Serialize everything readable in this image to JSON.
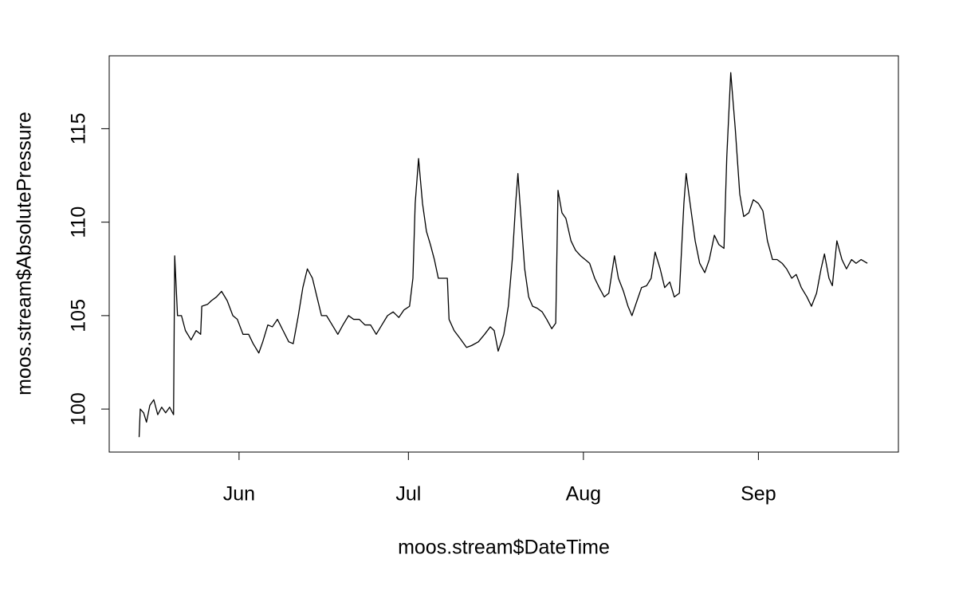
{
  "chart_data": {
    "type": "line",
    "xlabel": "moos.stream$DateTime",
    "ylabel": "moos.stream$AbsolutePressure",
    "xlim": [
      8.0,
      147.8
    ],
    "xticks": [
      {
        "value": 31,
        "label": "Jun"
      },
      {
        "value": 61,
        "label": "Jul"
      },
      {
        "value": 92,
        "label": "Aug"
      },
      {
        "value": 123,
        "label": "Sep"
      }
    ],
    "ylim": [
      97.7,
      118.9
    ],
    "yticks": [
      100,
      105,
      110,
      115
    ],
    "color": "#000000",
    "x": [
      13.3,
      13.5,
      14.1,
      14.6,
      15.2,
      15.9,
      16.6,
      17.3,
      18.0,
      18.7,
      19.4,
      19.6,
      20.1,
      20.8,
      21.5,
      22.5,
      23.4,
      24.2,
      24.4,
      25.4,
      26.1,
      27.0,
      27.9,
      28.9,
      29.9,
      30.7,
      31.7,
      32.7,
      33.5,
      34.5,
      35.2,
      36.1,
      36.9,
      37.8,
      38.8,
      39.8,
      40.6,
      41.5,
      42.3,
      43.1,
      44.0,
      44.8,
      45.6,
      46.5,
      47.5,
      48.5,
      49.4,
      50.4,
      51.3,
      52.3,
      53.3,
      54.3,
      55.3,
      56.3,
      57.3,
      58.3,
      59.3,
      60.2,
      61.2,
      61.8,
      62.2,
      62.8,
      63.5,
      64.2,
      64.9,
      65.6,
      66.3,
      67.2,
      67.9,
      68.2,
      69.1,
      70.1,
      71.3,
      72.2,
      73.4,
      74.5,
      75.5,
      76.2,
      76.9,
      77.9,
      78.7,
      79.4,
      80.0,
      80.4,
      81.0,
      81.6,
      82.3,
      83.0,
      83.8,
      84.7,
      85.5,
      86.4,
      87.1,
      87.5,
      88.2,
      88.9,
      89.8,
      90.6,
      91.5,
      92.3,
      93.1,
      94.0,
      94.8,
      95.7,
      96.5,
      97.5,
      98.2,
      99.1,
      99.9,
      100.6,
      101.5,
      102.3,
      103.2,
      104.0,
      104.7,
      105.6,
      106.4,
      107.3,
      108.1,
      109.0,
      109.8,
      110.2,
      110.9,
      111.8,
      112.6,
      113.5,
      114.3,
      115.2,
      116.0,
      116.9,
      117.4,
      118.1,
      118.9,
      119.7,
      120.4,
      121.3,
      122.1,
      123.0,
      123.8,
      124.6,
      125.5,
      126.3,
      127.2,
      128.0,
      128.9,
      129.7,
      130.6,
      131.6,
      132.4,
      133.3,
      134.1,
      134.7,
      135.5,
      136.1,
      136.9,
      137.8,
      138.6,
      139.5,
      140.3,
      141.2,
      142.3
    ],
    "values": [
      98.5,
      100.0,
      99.8,
      99.3,
      100.2,
      100.5,
      99.7,
      100.1,
      99.8,
      100.1,
      99.7,
      108.2,
      105.0,
      105.0,
      104.2,
      103.7,
      104.2,
      104.0,
      105.5,
      105.6,
      105.8,
      106.0,
      106.3,
      105.8,
      105.0,
      104.8,
      104.0,
      104.0,
      103.5,
      103.0,
      103.6,
      104.5,
      104.4,
      104.8,
      104.2,
      103.6,
      103.5,
      105.0,
      106.5,
      107.5,
      107.0,
      106.0,
      105.0,
      105.0,
      104.5,
      104.0,
      104.5,
      105.0,
      104.8,
      104.8,
      104.5,
      104.5,
      104.0,
      104.5,
      105.0,
      105.2,
      104.9,
      105.3,
      105.5,
      107.0,
      111.0,
      113.4,
      111.0,
      109.5,
      108.8,
      108.0,
      107.0,
      107.0,
      107.0,
      104.8,
      104.2,
      103.8,
      103.3,
      103.4,
      103.6,
      104.0,
      104.4,
      104.2,
      103.1,
      104.0,
      105.5,
      108.0,
      111.0,
      112.6,
      110.0,
      107.5,
      106.0,
      105.5,
      105.4,
      105.2,
      104.8,
      104.3,
      104.6,
      111.7,
      110.5,
      110.2,
      109.0,
      108.5,
      108.2,
      108.0,
      107.8,
      107.0,
      106.5,
      106.0,
      106.2,
      108.2,
      107.0,
      106.3,
      105.5,
      105.0,
      105.8,
      106.5,
      106.6,
      107.0,
      108.4,
      107.5,
      106.5,
      106.8,
      106.0,
      106.2,
      111.0,
      112.6,
      111.0,
      109.0,
      107.8,
      107.3,
      108.0,
      109.3,
      108.8,
      108.6,
      113.5,
      118.0,
      115.0,
      111.5,
      110.3,
      110.5,
      111.2,
      111.0,
      110.6,
      109.0,
      108.0,
      108.0,
      107.8,
      107.5,
      107.0,
      107.2,
      106.5,
      106.0,
      105.5,
      106.2,
      107.5,
      108.3,
      107.0,
      106.6,
      109.0,
      108.0,
      107.5,
      108.0,
      107.8,
      108.0,
      107.8
    ]
  }
}
